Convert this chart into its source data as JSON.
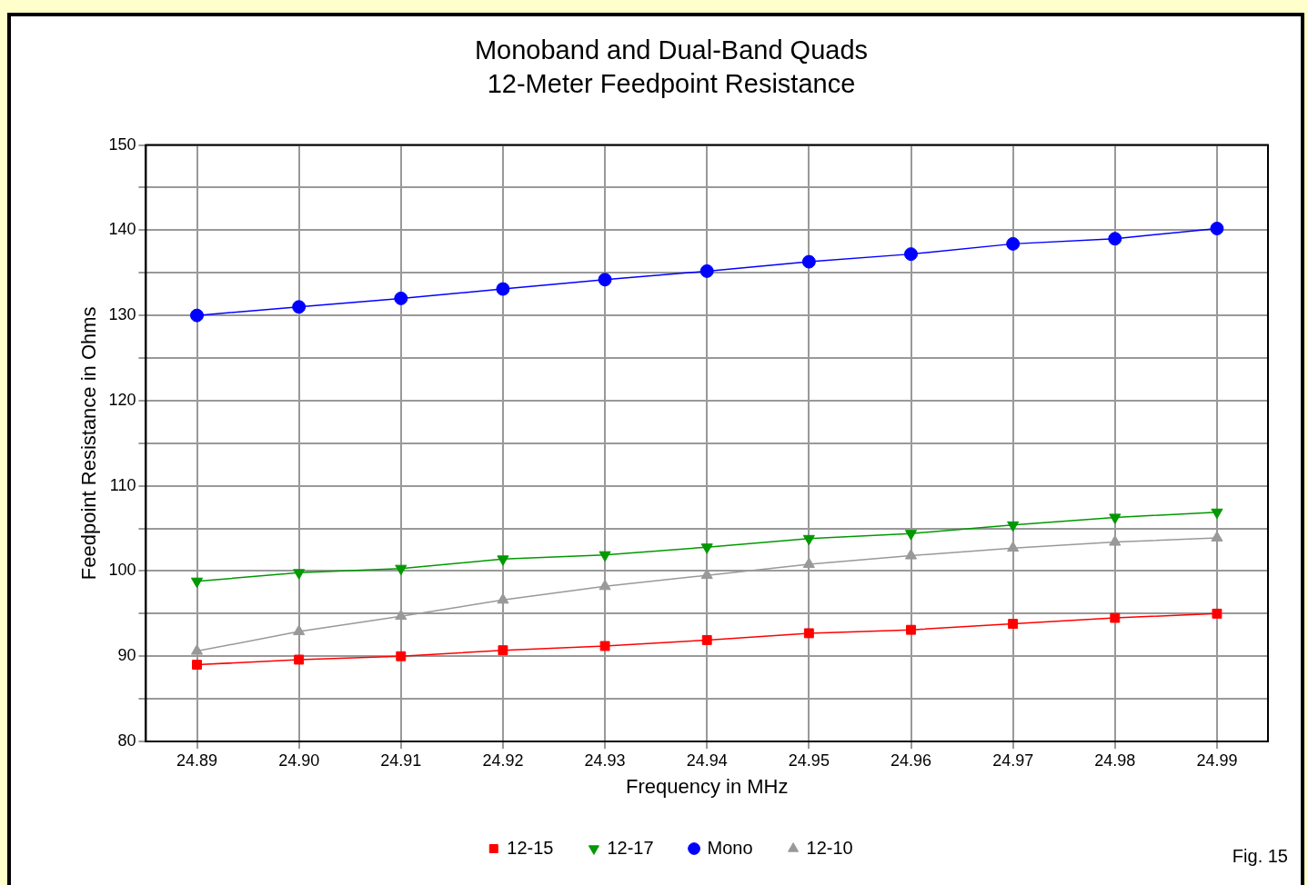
{
  "chart_data": {
    "type": "line",
    "title": "Monoband and Dual-Band Quads",
    "subtitle": "12-Meter Feedpoint Resistance",
    "xlabel": "Frequency in MHz",
    "ylabel": "Feedpoint Resistance in Ohms",
    "x": [
      24.89,
      24.9,
      24.91,
      24.92,
      24.93,
      24.94,
      24.95,
      24.96,
      24.97,
      24.98,
      24.99
    ],
    "series": [
      {
        "name": "12-15",
        "color": "#ff0000",
        "marker": "square",
        "values": [
          89.0,
          89.6,
          90.0,
          90.7,
          91.2,
          91.9,
          92.7,
          93.1,
          93.8,
          94.5,
          95.0
        ]
      },
      {
        "name": "12-17",
        "color": "#009900",
        "marker": "triangle-down",
        "values": [
          98.8,
          99.8,
          100.3,
          101.4,
          101.9,
          102.8,
          103.8,
          104.4,
          105.4,
          106.3,
          106.9
        ]
      },
      {
        "name": "Mono",
        "color": "#0000ff",
        "marker": "circle",
        "values": [
          130.0,
          131.0,
          132.0,
          133.1,
          134.2,
          135.2,
          136.3,
          137.2,
          138.4,
          139.0,
          140.2
        ]
      },
      {
        "name": "12-10",
        "color": "#999999",
        "marker": "triangle",
        "values": [
          90.6,
          92.9,
          94.7,
          96.6,
          98.2,
          99.5,
          100.8,
          101.8,
          102.7,
          103.4,
          103.9
        ]
      }
    ],
    "xlim": [
      24.885,
      24.995
    ],
    "xticks": [
      24.89,
      {
        "value": 24.9,
        "label": "24.90"
      },
      24.91,
      24.92,
      24.93,
      24.94,
      24.95,
      24.96,
      24.97,
      24.98,
      24.99
    ],
    "ylim": [
      80,
      150
    ],
    "yticks": [
      80,
      {
        "value": 85,
        "label": null
      },
      90,
      {
        "value": 95,
        "label": null
      },
      100,
      {
        "value": 105,
        "label": null
      },
      110,
      {
        "value": 115,
        "label": null
      },
      120,
      {
        "value": 125,
        "label": null
      },
      130,
      {
        "value": 135,
        "label": null
      },
      140,
      {
        "value": 145,
        "label": null
      },
      150
    ],
    "grid": true,
    "legend": "bottom",
    "line_style": "solid",
    "annotations": [
      "Fig. 15"
    ]
  }
}
